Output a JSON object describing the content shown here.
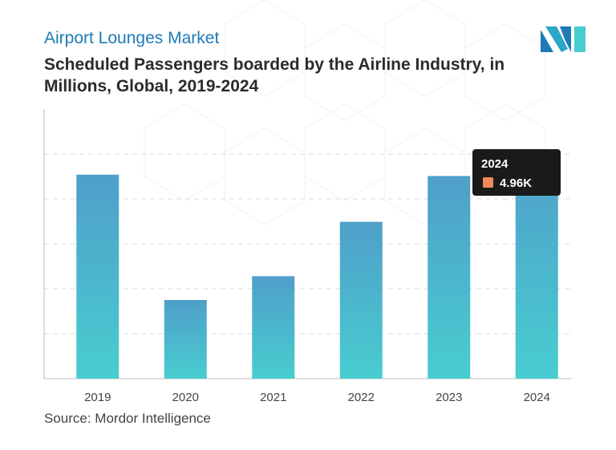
{
  "header": {
    "market_label": "Airport Lounges Market",
    "title": "Scheduled Passengers boarded by the Airline Industry, in Millions, Global, 2019-2024"
  },
  "source": "Source: Mordor Intelligence",
  "colors": {
    "bar_top": "#4f9fca",
    "bar_bottom": "#48cdd0",
    "accent": "#1f7ab8",
    "tooltip_bg": "#1a1a1a",
    "tooltip_marker": "#f08a5d"
  },
  "tooltip": {
    "year": "2024",
    "value_label": "4.96K"
  },
  "chart_data": {
    "type": "bar",
    "title": "Scheduled Passengers boarded by the Airline Industry, in Millions, Global, 2019-2024",
    "xlabel": "",
    "ylabel": "",
    "categories": [
      "2019",
      "2020",
      "2021",
      "2022",
      "2023",
      "2024"
    ],
    "values": [
      4540,
      1750,
      2280,
      3490,
      4510,
      4960
    ],
    "ylim": [
      0,
      6000
    ],
    "grid": true,
    "legend": "none"
  }
}
